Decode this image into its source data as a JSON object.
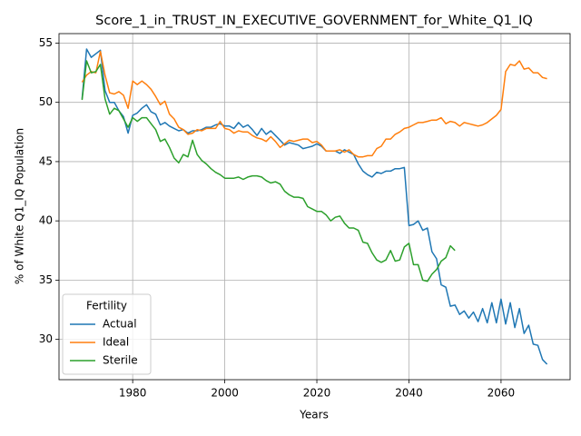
{
  "chart_data": {
    "type": "line",
    "title": "Score_1_in_TRUST_IN_EXECUTIVE_GOVERNMENT_for_White_Q1_IQ",
    "x_label": "Years",
    "y_label": "% of White Q1_IQ Population",
    "legend_title": "Fertility",
    "legend": "lower left",
    "grid": true,
    "x": [
      1969,
      1970,
      1971,
      1972,
      1973,
      1974,
      1975,
      1976,
      1977,
      1978,
      1979,
      1980,
      1981,
      1982,
      1983,
      1984,
      1985,
      1986,
      1987,
      1988,
      1989,
      1990,
      1991,
      1992,
      1993,
      1994,
      1995,
      1996,
      1997,
      1998,
      1999,
      2000,
      2001,
      2002,
      2003,
      2004,
      2005,
      2006,
      2007,
      2008,
      2009,
      2010,
      2011,
      2012,
      2013,
      2014,
      2015,
      2016,
      2017,
      2018,
      2019,
      2020,
      2021,
      2022,
      2023,
      2024,
      2025,
      2026,
      2027,
      2028,
      2029,
      2030,
      2031,
      2032,
      2033,
      2034,
      2035,
      2036,
      2037,
      2038,
      2039,
      2040,
      2041,
      2042,
      2043,
      2044,
      2045,
      2046,
      2047,
      2048,
      2049,
      2050,
      2051,
      2052,
      2053,
      2054,
      2055,
      2056,
      2057,
      2058,
      2059,
      2060,
      2061,
      2062,
      2063,
      2064,
      2065,
      2066,
      2067,
      2068,
      2069,
      2070
    ],
    "series": [
      {
        "name": "Actual",
        "color": "#1f77b4",
        "values": [
          50.3,
          54.5,
          53.8,
          54.1,
          54.4,
          51.0,
          50.0,
          50.0,
          49.3,
          48.8,
          47.4,
          48.9,
          49.1,
          49.5,
          49.8,
          49.2,
          49.0,
          48.1,
          48.3,
          48.0,
          47.8,
          47.6,
          47.7,
          47.4,
          47.6,
          47.6,
          47.7,
          47.9,
          47.9,
          48.1,
          48.2,
          48.0,
          48.0,
          47.8,
          48.3,
          47.9,
          48.1,
          47.7,
          47.2,
          47.8,
          47.3,
          47.6,
          47.2,
          46.8,
          46.4,
          46.6,
          46.5,
          46.4,
          46.1,
          46.2,
          46.3,
          46.5,
          46.3,
          45.9,
          45.9,
          45.9,
          45.7,
          46.0,
          45.8,
          45.6,
          44.8,
          44.2,
          43.9,
          43.7,
          44.1,
          44.0,
          44.2,
          44.2,
          44.4,
          44.4,
          44.5,
          39.6,
          39.7,
          40.0,
          39.2,
          39.4,
          37.4,
          36.8,
          34.6,
          34.4,
          32.8,
          32.9,
          32.1,
          32.4,
          31.8,
          32.3,
          31.5,
          32.6,
          31.4,
          33.1,
          31.4,
          33.4,
          31.3,
          33.1,
          31.0,
          32.6,
          30.5,
          31.2,
          29.6,
          29.5,
          28.3,
          27.9
        ]
      },
      {
        "name": "Ideal",
        "color": "#ff7f0e",
        "values": [
          51.7,
          52.3,
          52.6,
          52.5,
          54.3,
          52.3,
          50.8,
          50.7,
          50.9,
          50.6,
          49.5,
          51.8,
          51.5,
          51.8,
          51.5,
          51.1,
          50.5,
          49.8,
          50.1,
          49.0,
          48.6,
          47.9,
          47.7,
          47.3,
          47.4,
          47.7,
          47.6,
          47.8,
          47.8,
          47.8,
          48.4,
          47.8,
          47.7,
          47.4,
          47.6,
          47.5,
          47.5,
          47.2,
          47.0,
          46.9,
          46.7,
          47.1,
          46.7,
          46.2,
          46.5,
          46.8,
          46.7,
          46.8,
          46.9,
          46.9,
          46.6,
          46.7,
          46.4,
          45.9,
          45.9,
          45.9,
          46.0,
          45.8,
          46.0,
          45.6,
          45.4,
          45.4,
          45.5,
          45.5,
          46.1,
          46.3,
          46.9,
          46.9,
          47.3,
          47.5,
          47.8,
          47.9,
          48.1,
          48.3,
          48.3,
          48.4,
          48.5,
          48.5,
          48.7,
          48.2,
          48.4,
          48.3,
          48.0,
          48.3,
          48.2,
          48.1,
          48.0,
          48.1,
          48.3,
          48.6,
          48.9,
          49.4,
          52.6,
          53.2,
          53.1,
          53.5,
          52.8,
          52.9,
          52.5,
          52.5,
          52.1,
          52.0
        ]
      },
      {
        "name": "Sterile",
        "color": "#2ca02c",
        "values": [
          50.2,
          53.5,
          52.5,
          52.6,
          53.2,
          50.3,
          49.0,
          49.5,
          49.3,
          48.6,
          47.9,
          48.7,
          48.4,
          48.7,
          48.7,
          48.2,
          47.7,
          46.7,
          46.9,
          46.2,
          45.3,
          44.9,
          45.6,
          45.4,
          46.8,
          45.6,
          45.1,
          44.8,
          44.4,
          44.1,
          43.9,
          43.6,
          43.6,
          43.6,
          43.7,
          43.5,
          43.7,
          43.8,
          43.8,
          43.7,
          43.4,
          43.2,
          43.3,
          43.1,
          42.5,
          42.2,
          42.0,
          42.0,
          41.9,
          41.2,
          41.0,
          40.8,
          40.8,
          40.5,
          40.0,
          40.3,
          40.4,
          39.8,
          39.4,
          39.4,
          39.2,
          38.2,
          38.1,
          37.3,
          36.7,
          36.5,
          36.7,
          37.5,
          36.6,
          36.7,
          37.8,
          38.1,
          36.3,
          36.3,
          35.0,
          34.9,
          35.5,
          35.9,
          36.6,
          36.9,
          37.9,
          37.5,
          null,
          null,
          null,
          null,
          null,
          null,
          null,
          null,
          null,
          null,
          null,
          null,
          null,
          null,
          null,
          null,
          null,
          null,
          null,
          null
        ]
      }
    ],
    "xlim": [
      1964,
      2075
    ],
    "xticks": [
      1980,
      2000,
      2020,
      2040,
      2060
    ],
    "ylim": [
      26.6,
      55.8
    ],
    "yticks": [
      30,
      35,
      40,
      45,
      50,
      55
    ]
  }
}
